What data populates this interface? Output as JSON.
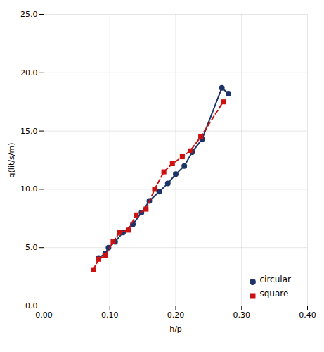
{
  "chart_data": {
    "type": "line",
    "xlabel": "h/p",
    "ylabel": "q(lit/s/m)",
    "series": [
      {
        "name": "circular",
        "color": "#1c3468",
        "marker": "circle",
        "line_style": "solid",
        "x": [
          0.083,
          0.093,
          0.098,
          0.108,
          0.12,
          0.135,
          0.148,
          0.16,
          0.175,
          0.188,
          0.2,
          0.213,
          0.225,
          0.24,
          0.27,
          0.28
        ],
        "values": [
          4.1,
          4.5,
          5.0,
          5.5,
          6.3,
          7.0,
          8.0,
          9.0,
          9.8,
          10.5,
          11.3,
          12.0,
          13.2,
          14.3,
          18.7,
          18.2
        ]
      },
      {
        "name": "square",
        "color": "#cc1111",
        "marker": "square",
        "line_style": "dashed",
        "x": [
          0.075,
          0.083,
          0.093,
          0.105,
          0.115,
          0.128,
          0.14,
          0.155,
          0.168,
          0.182,
          0.195,
          0.21,
          0.222,
          0.238,
          0.272
        ],
        "values": [
          3.1,
          4.0,
          4.3,
          5.5,
          6.3,
          6.5,
          7.8,
          8.3,
          10.0,
          11.5,
          12.2,
          12.8,
          13.3,
          14.5,
          17.5
        ]
      }
    ],
    "xlim": [
      0.0,
      0.4
    ],
    "ylim": [
      0.0,
      25.0
    ],
    "xticks": [
      {
        "value": 0.0,
        "label": "0.00"
      },
      {
        "value": 0.1,
        "label": "0.10"
      },
      {
        "value": 0.2,
        "label": "0.20"
      },
      {
        "value": 0.3,
        "label": "0.30"
      },
      {
        "value": 0.4,
        "label": "0.40"
      }
    ],
    "yticks": [
      {
        "value": 0.0,
        "label": "0.0"
      },
      {
        "value": 5.0,
        "label": "5.0"
      },
      {
        "value": 10.0,
        "label": "10.0"
      },
      {
        "value": 15.0,
        "label": "15.0"
      },
      {
        "value": 20.0,
        "label": "20.0"
      },
      {
        "value": 25.0,
        "label": "25.0"
      }
    ],
    "grid": true,
    "legend": "lower right"
  }
}
